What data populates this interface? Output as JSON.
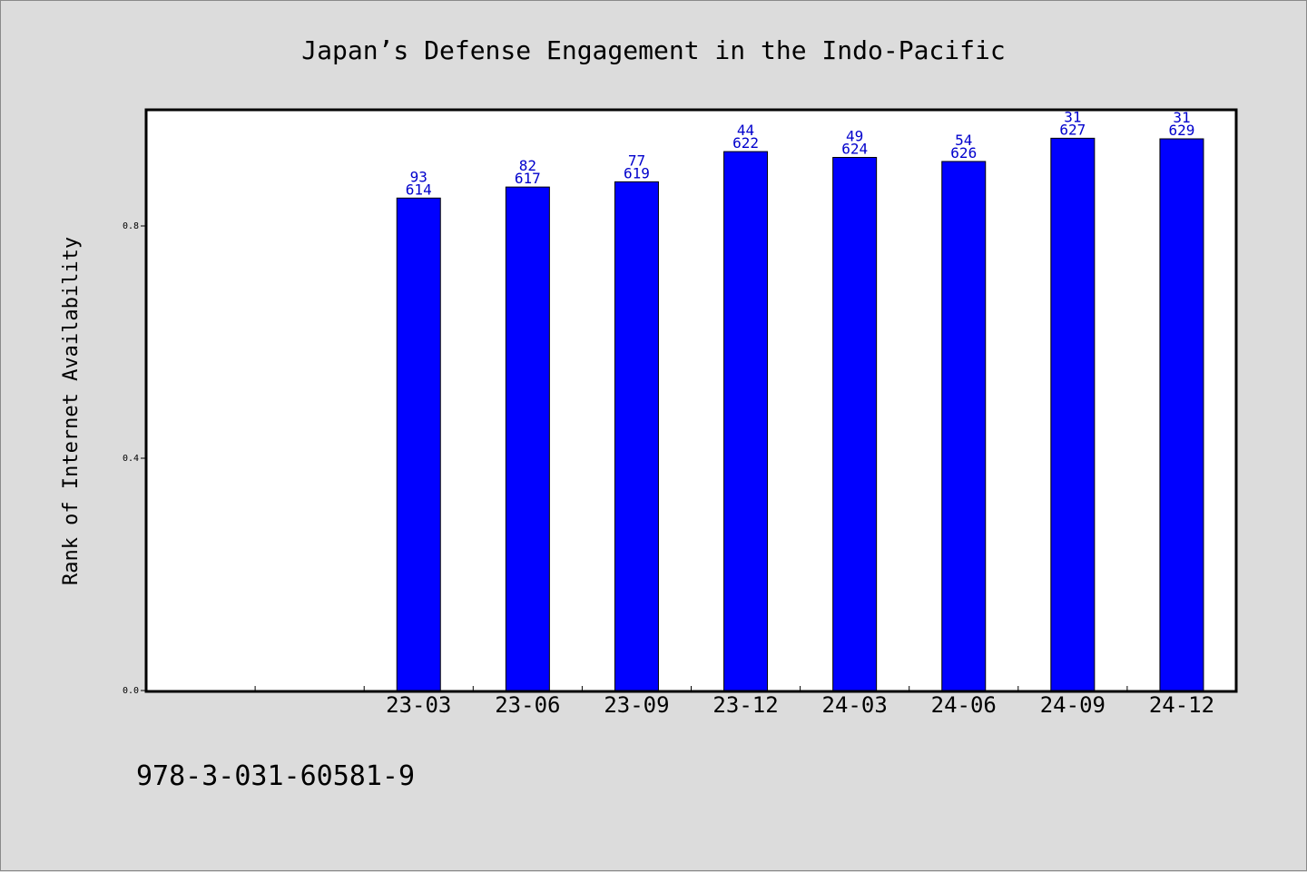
{
  "chart_data": {
    "type": "bar",
    "title": "Japan’s Defense Engagement in the Indo-Pacific",
    "xlabel": "",
    "ylabel": "Rank of Internet Availability",
    "ylim": [
      0,
      1.0
    ],
    "yticks": [
      "0.0",
      "0.4",
      "0.8"
    ],
    "ytick_values": [
      0.0,
      0.4,
      0.8
    ],
    "categories": [
      "",
      "",
      "23-03",
      "23-06",
      "23-09",
      "23-12",
      "24-03",
      "24-06",
      "24-09",
      "24-12"
    ],
    "values": [
      null,
      null,
      0.848,
      0.867,
      0.876,
      0.928,
      0.918,
      0.911,
      0.951,
      0.95
    ],
    "label_top": [
      "",
      "",
      "93",
      "82",
      "77",
      "44",
      "49",
      "54",
      "31",
      "31"
    ],
    "label_bottom": [
      "",
      "",
      "614",
      "617",
      "619",
      "622",
      "624",
      "626",
      "627",
      "629"
    ],
    "bar_color": "#0000ff",
    "label_color": "#0000cc",
    "grid": false,
    "legend": "none"
  },
  "footer": {
    "isbn": "978-3-031-60581-9"
  }
}
